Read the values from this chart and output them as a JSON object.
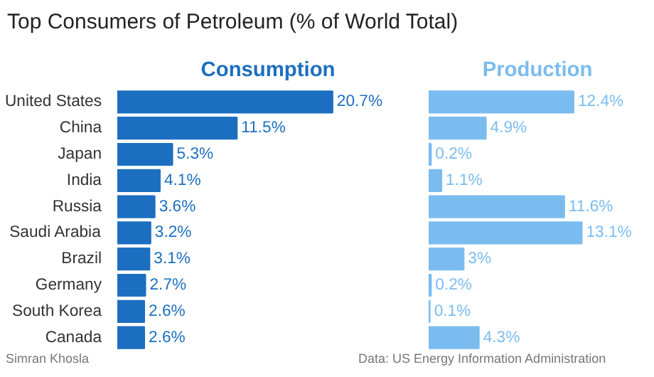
{
  "chart_data": [
    {
      "type": "bar",
      "orientation": "horizontal",
      "title": "Top Consumers of Petroleum (% of World Total)",
      "subtitle": "Consumption",
      "categories": [
        "United States",
        "China",
        "Japan",
        "India",
        "Russia",
        "Saudi Arabia",
        "Brazil",
        "Germany",
        "South Korea",
        "Canada"
      ],
      "values": [
        20.7,
        11.5,
        5.3,
        4.1,
        3.6,
        3.2,
        3.1,
        2.7,
        2.6,
        2.6
      ],
      "value_labels": [
        "20.7%",
        "11.5%",
        "5.3%",
        "4.1%",
        "3.6%",
        "3.2%",
        "3.1%",
        "2.7%",
        "2.6%",
        "2.6%"
      ],
      "color": "#1c6fc0",
      "annotations": [
        "Simran Khosla"
      ]
    },
    {
      "type": "bar",
      "orientation": "horizontal",
      "subtitle": "Production",
      "values": [
        12.4,
        4.9,
        0.2,
        1.1,
        11.6,
        13.1,
        3,
        0.2,
        0.1,
        4.3
      ],
      "value_labels": [
        "12.4%",
        "4.9%",
        "0.2%",
        "1.1%",
        "11.6%",
        "13.1%",
        "3%",
        "0.2%",
        "0.1%",
        "4.3%"
      ],
      "color": "#7bbcf0",
      "tick_labels": false,
      "annotations": [
        "Data: US Energy Information Administration"
      ]
    }
  ]
}
